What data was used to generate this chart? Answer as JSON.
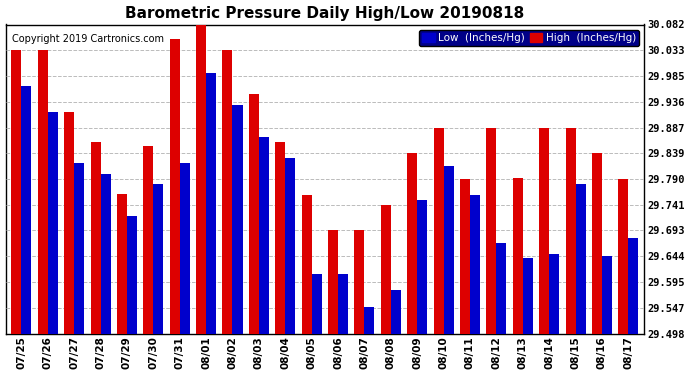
{
  "title": "Barometric Pressure Daily High/Low 20190818",
  "copyright": "Copyright 2019 Cartronics.com",
  "legend_low": "Low  (Inches/Hg)",
  "legend_high": "High  (Inches/Hg)",
  "dates": [
    "07/25",
    "07/26",
    "07/27",
    "07/28",
    "07/29",
    "07/30",
    "07/31",
    "08/01",
    "08/02",
    "08/03",
    "08/04",
    "08/05",
    "08/06",
    "08/07",
    "08/08",
    "08/09",
    "08/10",
    "08/11",
    "08/12",
    "08/13",
    "08/14",
    "08/15",
    "08/16",
    "08/17"
  ],
  "low": [
    29.965,
    29.916,
    29.82,
    29.8,
    29.72,
    29.78,
    29.82,
    29.99,
    29.93,
    29.87,
    29.83,
    29.61,
    29.61,
    29.548,
    29.58,
    29.75,
    29.815,
    29.76,
    29.67,
    29.64,
    29.648,
    29.78,
    29.645,
    29.678
  ],
  "high": [
    30.033,
    30.033,
    29.916,
    29.86,
    29.762,
    29.852,
    30.055,
    30.082,
    30.033,
    29.95,
    29.86,
    29.76,
    29.693,
    29.693,
    29.741,
    29.839,
    29.887,
    29.79,
    29.887,
    29.792,
    29.887,
    29.887,
    29.839,
    29.79
  ],
  "ylim_min": 29.498,
  "ylim_max": 30.082,
  "yticks": [
    29.498,
    29.547,
    29.595,
    29.644,
    29.693,
    29.741,
    29.79,
    29.839,
    29.887,
    29.936,
    29.985,
    30.033,
    30.082
  ],
  "bar_width": 0.38,
  "low_color": "#0000cc",
  "high_color": "#dd0000",
  "bg_color": "#ffffff",
  "grid_color": "#bbbbbb",
  "title_fontsize": 11,
  "copyright_fontsize": 7,
  "tick_fontsize": 7.5,
  "legend_fontsize": 7.5
}
